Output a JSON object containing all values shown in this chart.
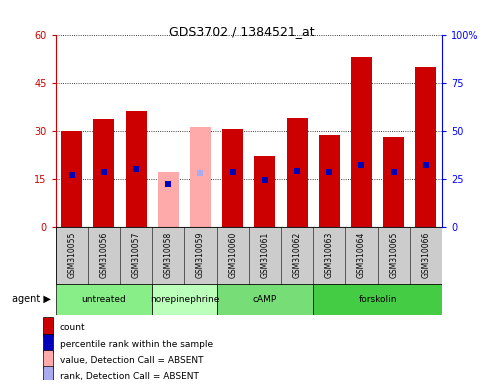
{
  "title": "GDS3702 / 1384521_at",
  "samples": [
    "GSM310055",
    "GSM310056",
    "GSM310057",
    "GSM310058",
    "GSM310059",
    "GSM310060",
    "GSM310061",
    "GSM310062",
    "GSM310063",
    "GSM310064",
    "GSM310065",
    "GSM310066"
  ],
  "red_bars": [
    30.0,
    33.5,
    36.0,
    null,
    null,
    30.5,
    22.0,
    34.0,
    28.5,
    53.0,
    28.0,
    50.0
  ],
  "pink_bars": [
    null,
    null,
    null,
    17.0,
    31.0,
    null,
    null,
    null,
    null,
    null,
    null,
    null
  ],
  "blue_markers": [
    27.0,
    28.5,
    30.0,
    null,
    null,
    28.5,
    24.0,
    29.0,
    28.5,
    32.0,
    28.5,
    32.0
  ],
  "blue_absent_markers": [
    null,
    null,
    null,
    22.0,
    null,
    null,
    null,
    null,
    null,
    null,
    null,
    null
  ],
  "light_blue_absent_markers": [
    null,
    null,
    null,
    null,
    28.0,
    null,
    null,
    null,
    null,
    null,
    null,
    null
  ],
  "ylim_left": [
    0,
    60
  ],
  "ylim_right": [
    0,
    100
  ],
  "yticks_left": [
    0,
    15,
    30,
    45,
    60
  ],
  "yticks_right": [
    0,
    25,
    50,
    75,
    100
  ],
  "ytick_labels_right": [
    "0",
    "25",
    "50",
    "75",
    "100%"
  ],
  "groups": [
    {
      "label": "untreated",
      "indices": [
        0,
        1,
        2
      ],
      "color": "#88ee88"
    },
    {
      "label": "norepinephrine",
      "indices": [
        3,
        4
      ],
      "color": "#bbffbb"
    },
    {
      "label": "cAMP",
      "indices": [
        5,
        6,
        7
      ],
      "color": "#77dd77"
    },
    {
      "label": "forskolin",
      "indices": [
        8,
        9,
        10,
        11
      ],
      "color": "#44cc44"
    }
  ],
  "bar_width": 0.65,
  "red_color": "#cc0000",
  "pink_color": "#ffaaaa",
  "blue_color": "#0000bb",
  "light_blue_color": "#aaaaee",
  "bg_color": "#cccccc",
  "plot_bg": "#ffffff"
}
